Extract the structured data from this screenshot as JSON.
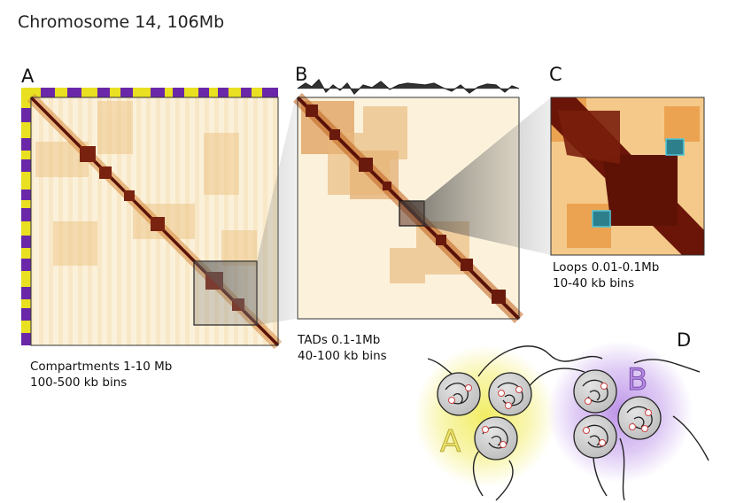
{
  "figure": {
    "title": "Chromosome 14, 106Mb"
  },
  "panels": {
    "A": {
      "letter": "A",
      "caption_line1": "Compartments 1-10 Mb",
      "caption_line2": "100-500 kb bins"
    },
    "B": {
      "letter": "B",
      "caption_line1": "TADs 0.1-1Mb",
      "caption_line2": "40-100 kb bins"
    },
    "C": {
      "letter": "C",
      "caption_line1": "Loops 0.01-0.1Mb",
      "caption_line2": "10-40 kb bins"
    },
    "D": {
      "letter": "D",
      "compartment_a_label": "A",
      "compartment_b_label": "B"
    }
  },
  "colors": {
    "compartment_purple": "#6a28a8",
    "compartment_yellow": "#e8e020",
    "heatmap_dark": "#5a1208",
    "heatmap_mid": "#c8641e",
    "heatmap_light": "#fbefd2",
    "loop_highlight": "#4fc6d8",
    "halo_yellow": "#f4ef7a",
    "halo_purple": "#c9a8ee"
  }
}
